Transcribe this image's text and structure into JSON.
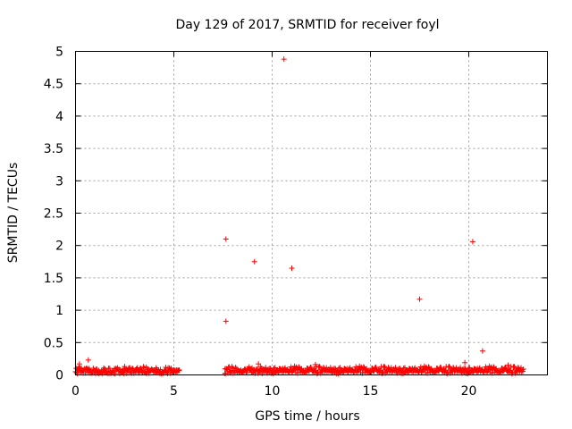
{
  "chart_data": {
    "type": "scatter",
    "title": "Day 129 of 2017, SRMTID for receiver foyl",
    "xlabel": "GPS time / hours",
    "ylabel": "SRMTID / TECUs",
    "xlim": [
      0,
      24
    ],
    "ylim": [
      0,
      5
    ],
    "x_ticks": [
      0,
      5,
      10,
      15,
      20
    ],
    "x_tick_labels": [
      "0",
      "5",
      "10",
      "15",
      "20"
    ],
    "y_ticks": [
      0,
      0.5,
      1,
      1.5,
      2,
      2.5,
      3,
      3.5,
      4,
      4.5,
      5
    ],
    "y_tick_labels": [
      "0",
      "0.5",
      "1",
      "1.5",
      "2",
      "2.5",
      "3",
      "3.5",
      "4",
      "4.5",
      "5"
    ],
    "grid": true,
    "marker": "+",
    "series": [
      {
        "name": "SRMTID",
        "color": "#ff0000",
        "dense_band_segments": [
          {
            "x_start": 0.0,
            "x_end": 5.3,
            "y_low": 0.0,
            "y_high": 0.13
          },
          {
            "x_start": 7.6,
            "x_end": 22.8,
            "y_low": 0.0,
            "y_high": 0.14
          }
        ],
        "points": [
          {
            "x": 0.1,
            "y": 0.09
          },
          {
            "x": 0.2,
            "y": 0.17
          },
          {
            "x": 0.65,
            "y": 0.23
          },
          {
            "x": 2.5,
            "y": 0.13
          },
          {
            "x": 3.6,
            "y": 0.12
          },
          {
            "x": 4.1,
            "y": 0.11
          },
          {
            "x": 7.6,
            "y": 0.02
          },
          {
            "x": 7.65,
            "y": 2.1
          },
          {
            "x": 7.65,
            "y": 0.83
          },
          {
            "x": 9.1,
            "y": 1.75
          },
          {
            "x": 9.3,
            "y": 0.17
          },
          {
            "x": 10.6,
            "y": 4.88
          },
          {
            "x": 11.0,
            "y": 1.65
          },
          {
            "x": 12.2,
            "y": 0.16
          },
          {
            "x": 17.5,
            "y": 1.17
          },
          {
            "x": 19.8,
            "y": 0.19
          },
          {
            "x": 20.2,
            "y": 2.06
          },
          {
            "x": 20.7,
            "y": 0.37
          },
          {
            "x": 22.0,
            "y": 0.15
          }
        ]
      }
    ]
  }
}
